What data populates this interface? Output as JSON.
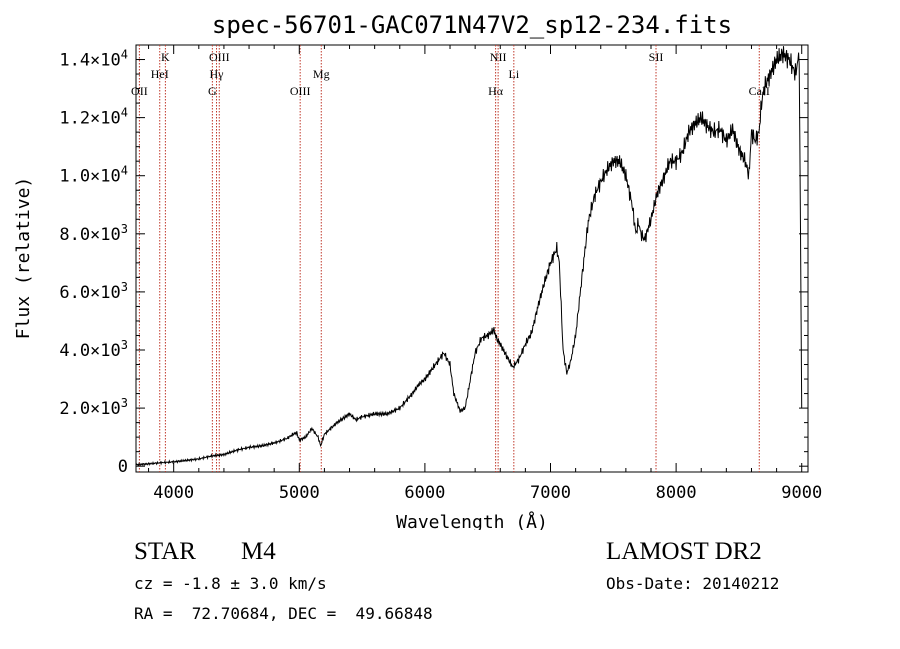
{
  "chart_data": {
    "type": "line",
    "title": "spec-56701-GAC071N47V2_sp12-234.fits",
    "xlabel": "Wavelength (Å)",
    "ylabel": "Flux (relative)",
    "xlim": [
      3700,
      9050
    ],
    "ylim": [
      -200,
      14500
    ],
    "x_ticks": [
      4000,
      5000,
      6000,
      7000,
      8000,
      9000
    ],
    "y_ticks": [
      {
        "value": 0,
        "mant": "0",
        "exp": ""
      },
      {
        "value": 2000,
        "mant": "2.0×10",
        "exp": "3"
      },
      {
        "value": 4000,
        "mant": "4.0×10",
        "exp": "3"
      },
      {
        "value": 6000,
        "mant": "6.0×10",
        "exp": "3"
      },
      {
        "value": 8000,
        "mant": "8.0×10",
        "exp": "3"
      },
      {
        "value": 10000,
        "mant": "1.0×10",
        "exp": "4"
      },
      {
        "value": 12000,
        "mant": "1.2×10",
        "exp": "4"
      },
      {
        "value": 14000,
        "mant": "1.4×10",
        "exp": "4"
      }
    ],
    "grid": false,
    "line_color": "#000000",
    "marker_color": "#c0392b",
    "spectral_lines": [
      {
        "name": "OII",
        "wavelength": 3727,
        "row": 3
      },
      {
        "name": "HeI",
        "wavelength": 3889,
        "row": 2
      },
      {
        "name": "K",
        "wavelength": 3934,
        "row": 1
      },
      {
        "name": "G",
        "wavelength": 4308,
        "row": 3
      },
      {
        "name": "Hγ",
        "wavelength": 4341,
        "row": 2
      },
      {
        "name": "OIII",
        "wavelength": 4363,
        "row": 1
      },
      {
        "name": "OIII",
        "wavelength": 5007,
        "row": 3
      },
      {
        "name": "Mg",
        "wavelength": 5175,
        "row": 2
      },
      {
        "name": "Hα",
        "wavelength": 6563,
        "row": 3
      },
      {
        "name": "NII",
        "wavelength": 6583,
        "row": 1
      },
      {
        "name": "Li",
        "wavelength": 6708,
        "row": 2
      },
      {
        "name": "SII",
        "wavelength": 7840,
        "row": 1
      },
      {
        "name": "CaII",
        "wavelength": 8662,
        "row": 3
      }
    ],
    "spectrum": {
      "x": [
        3700,
        3800,
        3900,
        4000,
        4100,
        4200,
        4300,
        4400,
        4500,
        4600,
        4700,
        4800,
        4900,
        4950,
        4980,
        5000,
        5050,
        5100,
        5150,
        5170,
        5200,
        5300,
        5400,
        5450,
        5500,
        5600,
        5700,
        5800,
        5900,
        5950,
        6000,
        6050,
        6100,
        6150,
        6200,
        6230,
        6280,
        6320,
        6350,
        6400,
        6450,
        6500,
        6550,
        6570,
        6600,
        6650,
        6700,
        6750,
        6800,
        6850,
        6900,
        6950,
        7000,
        7050,
        7070,
        7100,
        7130,
        7160,
        7200,
        7250,
        7300,
        7350,
        7400,
        7450,
        7500,
        7550,
        7600,
        7650,
        7680,
        7700,
        7720,
        7750,
        7800,
        7850,
        7900,
        7950,
        8000,
        8050,
        8100,
        8150,
        8200,
        8250,
        8300,
        8350,
        8400,
        8450,
        8500,
        8550,
        8580,
        8600,
        8630,
        8660,
        8680,
        8700,
        8750,
        8800,
        8850,
        8900,
        8950,
        8980,
        9000
      ],
      "y": [
        50,
        80,
        120,
        150,
        200,
        250,
        350,
        400,
        550,
        650,
        700,
        800,
        950,
        1100,
        1150,
        900,
        1000,
        1300,
        1000,
        700,
        1100,
        1500,
        1800,
        1600,
        1700,
        1800,
        1800,
        2000,
        2500,
        2800,
        3000,
        3300,
        3600,
        3900,
        3500,
        2500,
        1900,
        2000,
        2700,
        3900,
        4400,
        4500,
        4700,
        4400,
        4200,
        3800,
        3400,
        3700,
        4200,
        4600,
        5500,
        6300,
        7000,
        7500,
        7000,
        4000,
        3200,
        3600,
        4500,
        6500,
        8400,
        9300,
        9800,
        10200,
        10500,
        10500,
        10000,
        9000,
        8000,
        8400,
        8000,
        7800,
        8500,
        9400,
        9900,
        10500,
        10500,
        10800,
        11500,
        11800,
        12000,
        11700,
        11500,
        11600,
        11200,
        11600,
        10900,
        10500,
        10000,
        11500,
        11200,
        11500,
        12500,
        13000,
        13500,
        14000,
        14200,
        14000,
        13500,
        14200,
        2000
      ]
    }
  },
  "info": {
    "object_type": "STAR",
    "subclass": "M4",
    "redshift": "cz = -1.8 ± 3.0 km/s",
    "coords": "RA =  72.70684, DEC =  49.66848",
    "survey": "LAMOST DR2",
    "obs_date": "Obs-Date: 20140212"
  }
}
